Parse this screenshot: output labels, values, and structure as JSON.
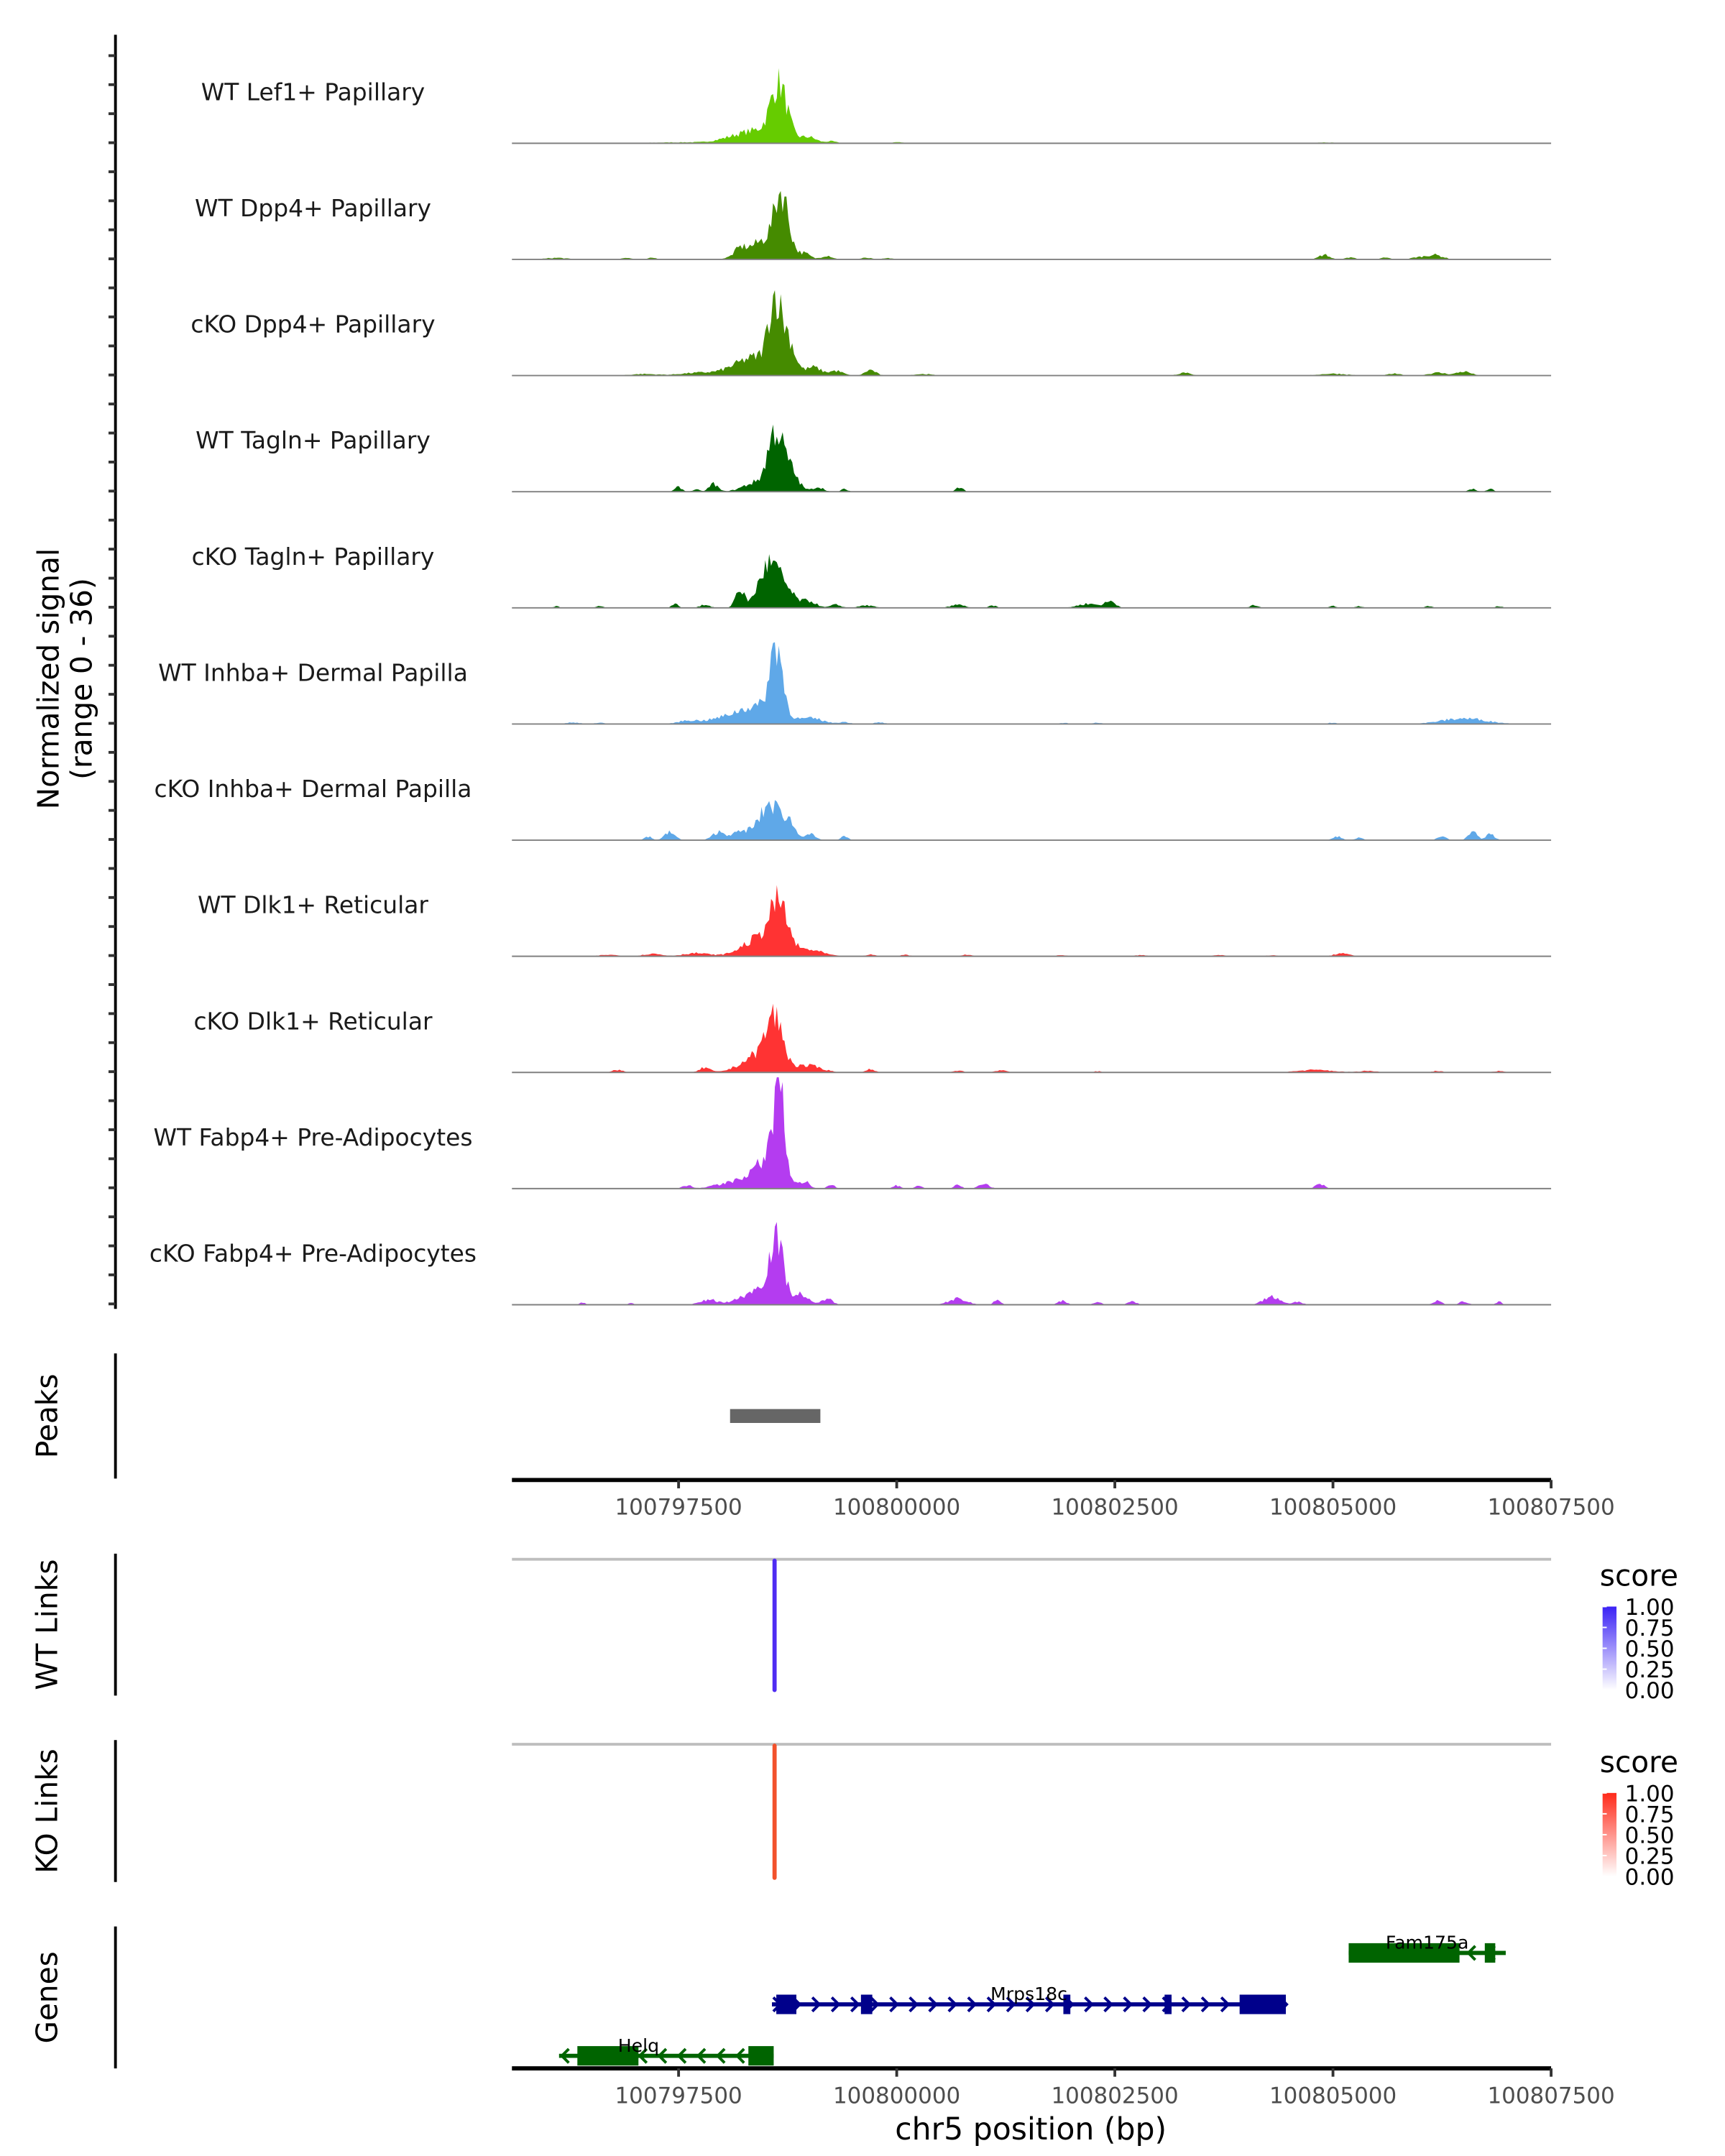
{
  "chart_data": {
    "type": "area",
    "title": "",
    "xlabel": "chr5 position (bp)",
    "ylabel": "Normalized signal\n(range 0 - 36)",
    "ylabel_lines": [
      "Normalized signal",
      "(range 0 - 36)"
    ],
    "xlim": [
      100795590,
      100807500
    ],
    "ylim": [
      0,
      36
    ],
    "x_ticks": [
      100797500,
      100800000,
      100802500,
      100805000,
      100807500
    ],
    "x_tick_labels": [
      "100797500",
      "100800000",
      "100802500",
      "100805000",
      "100807500"
    ],
    "tracks": [
      {
        "name": "WT Lef1+ Papillary",
        "color": "#66cc00",
        "peaks": [
          [
            100798650,
            90,
            16
          ],
          [
            100798500,
            250,
            4
          ],
          [
            100798150,
            200,
            1.2
          ],
          [
            100799000,
            80,
            1.5
          ],
          [
            100799250,
            60,
            0.6
          ],
          [
            100797500,
            300,
            0.3
          ],
          [
            100800000,
            80,
            0.3
          ],
          [
            100804900,
            100,
            0.3
          ]
        ]
      },
      {
        "name": "WT Dpp4+ Papillary",
        "color": "#458b00",
        "peaks": [
          [
            100798680,
            80,
            18
          ],
          [
            100798500,
            200,
            6
          ],
          [
            100798200,
            60,
            2
          ],
          [
            100798950,
            60,
            1.5
          ],
          [
            100799200,
            60,
            1.2
          ],
          [
            100796100,
            120,
            0.5
          ],
          [
            100796900,
            50,
            0.6
          ],
          [
            100797200,
            50,
            0.5
          ],
          [
            100799650,
            60,
            0.5
          ],
          [
            100799900,
            60,
            0.4
          ],
          [
            100804900,
            60,
            1.5
          ],
          [
            100805200,
            50,
            0.7
          ],
          [
            100805600,
            50,
            0.6
          ],
          [
            100806150,
            100,
            1.5
          ],
          [
            100805950,
            60,
            0.5
          ]
        ]
      },
      {
        "name": "cKO Dpp4+ Papillary",
        "color": "#458b00",
        "peaks": [
          [
            100798600,
            70,
            20
          ],
          [
            100798750,
            80,
            10
          ],
          [
            100798400,
            250,
            6
          ],
          [
            100799050,
            80,
            2.5
          ],
          [
            100799300,
            80,
            1.5
          ],
          [
            100799700,
            60,
            1.8
          ],
          [
            100797700,
            200,
            0.8
          ],
          [
            100797100,
            150,
            0.5
          ],
          [
            100800300,
            100,
            0.5
          ],
          [
            100803300,
            70,
            1
          ],
          [
            100805000,
            150,
            0.6
          ],
          [
            100805700,
            70,
            0.6
          ],
          [
            100806200,
            100,
            0.9
          ],
          [
            100806500,
            80,
            1.3
          ]
        ]
      },
      {
        "name": "WT Tagln+ Papillary",
        "color": "#006400",
        "peaks": [
          [
            100798600,
            80,
            16
          ],
          [
            100798750,
            100,
            8
          ],
          [
            100798400,
            150,
            3
          ],
          [
            100797500,
            40,
            1.5
          ],
          [
            100797900,
            50,
            2.5
          ],
          [
            100797700,
            40,
            0.7
          ],
          [
            100799100,
            60,
            1.5
          ],
          [
            100799400,
            40,
            0.8
          ],
          [
            100800720,
            40,
            1.5
          ],
          [
            100806800,
            40,
            1
          ],
          [
            100806600,
            40,
            1
          ]
        ]
      },
      {
        "name": "cKO Tagln+ Papillary",
        "color": "#006400",
        "peaks": [
          [
            100798520,
            110,
            12
          ],
          [
            100798200,
            50,
            6
          ],
          [
            100798700,
            120,
            6
          ],
          [
            100799000,
            80,
            2
          ],
          [
            100799300,
            60,
            1
          ],
          [
            100799650,
            80,
            0.8
          ],
          [
            100796100,
            30,
            0.6
          ],
          [
            100796600,
            40,
            0.6
          ],
          [
            100797460,
            40,
            1.2
          ],
          [
            100797800,
            60,
            1
          ],
          [
            100800700,
            80,
            1
          ],
          [
            100801100,
            40,
            0.8
          ],
          [
            100802200,
            120,
            1.3
          ],
          [
            100802450,
            60,
            2
          ],
          [
            100804100,
            50,
            0.8
          ],
          [
            100805000,
            40,
            0.6
          ],
          [
            100805300,
            40,
            0.5
          ],
          [
            100806100,
            40,
            0.6
          ],
          [
            100806900,
            40,
            0.6
          ]
        ]
      },
      {
        "name": "WT Inhba+ Dermal Papilla",
        "color": "#5fa8e8",
        "peaks": [
          [
            100798620,
            70,
            22
          ],
          [
            100798450,
            250,
            5
          ],
          [
            100798100,
            300,
            1.5
          ],
          [
            100799050,
            120,
            1.5
          ],
          [
            100799400,
            70,
            0.6
          ],
          [
            100799800,
            60,
            0.5
          ],
          [
            100796300,
            80,
            0.5
          ],
          [
            100796600,
            60,
            0.4
          ],
          [
            100797600,
            100,
            0.8
          ],
          [
            100801900,
            60,
            0.4
          ],
          [
            100802300,
            60,
            0.4
          ],
          [
            100805000,
            60,
            0.4
          ],
          [
            100806500,
            250,
            1.8
          ]
        ]
      },
      {
        "name": "cKO Inhba+ Dermal Papilla",
        "color": "#5fa8e8",
        "peaks": [
          [
            100798550,
            100,
            10
          ],
          [
            100798750,
            80,
            6
          ],
          [
            100798300,
            200,
            3
          ],
          [
            100797400,
            60,
            2.5
          ],
          [
            100797150,
            40,
            1.2
          ],
          [
            100797950,
            60,
            2
          ],
          [
            100799000,
            60,
            2
          ],
          [
            100799400,
            40,
            1.2
          ],
          [
            100805050,
            50,
            1.2
          ],
          [
            100805300,
            40,
            0.8
          ],
          [
            100806250,
            50,
            1.2
          ],
          [
            100806600,
            50,
            2.5
          ],
          [
            100806800,
            50,
            2
          ]
        ]
      },
      {
        "name": "WT Dlk1+ Reticular",
        "color": "#ff3333",
        "peaks": [
          [
            100798650,
            100,
            14
          ],
          [
            100798450,
            200,
            6
          ],
          [
            100799000,
            150,
            2
          ],
          [
            100797700,
            150,
            1
          ],
          [
            100797200,
            100,
            0.8
          ],
          [
            100796700,
            100,
            0.5
          ],
          [
            100799700,
            50,
            0.6
          ],
          [
            100800100,
            50,
            0.5
          ],
          [
            100800800,
            60,
            0.5
          ],
          [
            100801900,
            60,
            0.4
          ],
          [
            100802800,
            60,
            0.4
          ],
          [
            100803700,
            60,
            0.4
          ],
          [
            100804300,
            60,
            0.3
          ],
          [
            100805100,
            80,
            1
          ]
        ]
      },
      {
        "name": "cKO Dlk1+ Reticular",
        "color": "#ff3333",
        "peaks": [
          [
            100798600,
            90,
            14
          ],
          [
            100798450,
            200,
            6
          ],
          [
            100799000,
            150,
            2
          ],
          [
            100797800,
            60,
            1.5
          ],
          [
            100796800,
            60,
            0.8
          ],
          [
            100799700,
            50,
            1
          ],
          [
            100800700,
            60,
            0.6
          ],
          [
            100801200,
            60,
            0.8
          ],
          [
            100802300,
            40,
            0.4
          ],
          [
            100804800,
            200,
            0.8
          ],
          [
            100805400,
            100,
            0.5
          ],
          [
            100806200,
            60,
            0.5
          ],
          [
            100806900,
            60,
            0.5
          ]
        ]
      },
      {
        "name": "WT Fabp4+ Pre-Adipocytes",
        "color": "#b43cf0",
        "peaks": [
          [
            100798650,
            60,
            28
          ],
          [
            100798550,
            150,
            8
          ],
          [
            100798300,
            250,
            3
          ],
          [
            100798950,
            50,
            2
          ],
          [
            100799250,
            40,
            1.3
          ],
          [
            100797600,
            50,
            1
          ],
          [
            100797900,
            30,
            0.7
          ],
          [
            100800000,
            40,
            1
          ],
          [
            100800250,
            40,
            1
          ],
          [
            100800700,
            40,
            1.2
          ],
          [
            100801000,
            60,
            1.5
          ],
          [
            100804850,
            50,
            1.5
          ]
        ]
      },
      {
        "name": "cKO Fabp4+ Pre-Adipocytes",
        "color": "#b43cf0",
        "peaks": [
          [
            100798620,
            80,
            18
          ],
          [
            100798450,
            200,
            5
          ],
          [
            100798900,
            80,
            3
          ],
          [
            100799200,
            60,
            2
          ],
          [
            100797850,
            100,
            1.5
          ],
          [
            100796400,
            30,
            0.8
          ],
          [
            100796950,
            30,
            0.6
          ],
          [
            100800700,
            100,
            2
          ],
          [
            100801150,
            40,
            1.5
          ],
          [
            100801900,
            50,
            1.2
          ],
          [
            100802300,
            40,
            1
          ],
          [
            100802700,
            50,
            1
          ],
          [
            100804300,
            100,
            2.5
          ],
          [
            100804600,
            50,
            1
          ],
          [
            100806200,
            50,
            1.2
          ],
          [
            100806500,
            50,
            1
          ],
          [
            100806900,
            30,
            1
          ]
        ]
      }
    ],
    "peaks_track": {
      "label": "Peaks",
      "color": "#666666",
      "regions": [
        [
          100798090,
          100799125
        ]
      ]
    },
    "links": [
      {
        "label": "WT Links",
        "color": "#4f2cf2",
        "links": [
          {
            "pos": 100798600,
            "score": 1.0
          }
        ],
        "legend": {
          "title": "score",
          "low": "#ffffff",
          "high": "#3b22f5",
          "labels": [
            "1.00",
            "0.75",
            "0.50",
            "0.25",
            "0.00"
          ]
        }
      },
      {
        "label": "KO Links",
        "color": "#f2522c",
        "links": [
          {
            "pos": 100798600,
            "score": 1.0
          }
        ],
        "legend": {
          "title": "score",
          "low": "#ffffff",
          "high": "#ff2a1a",
          "labels": [
            "1.00",
            "0.75",
            "0.50",
            "0.25",
            "0.00"
          ]
        }
      }
    ],
    "genes_track": {
      "label": "Genes",
      "genes": [
        {
          "name": "Fam175a",
          "strand": "-",
          "color": "#006400",
          "start": 100805180,
          "end": 100806980,
          "exons": [
            [
              100805180,
              100806450
            ],
            [
              100806740,
              100806860
            ]
          ],
          "row": 0
        },
        {
          "name": "Mrps18c",
          "strand": "+",
          "color": "#00008b",
          "start": 100798570,
          "end": 100804460,
          "exons": [
            [
              100798620,
              100798850
            ],
            [
              100799590,
              100799720
            ],
            [
              100801910,
              100801990
            ],
            [
              100803070,
              100803150
            ],
            [
              100803930,
              100804460
            ]
          ],
          "row": 1
        },
        {
          "name": "Helq",
          "strand": "-",
          "color": "#006400",
          "start": 100796130,
          "end": 100798590,
          "exons": [
            [
              100796340,
              100797040
            ],
            [
              100798300,
              100798590
            ]
          ],
          "row": 2
        }
      ]
    }
  }
}
